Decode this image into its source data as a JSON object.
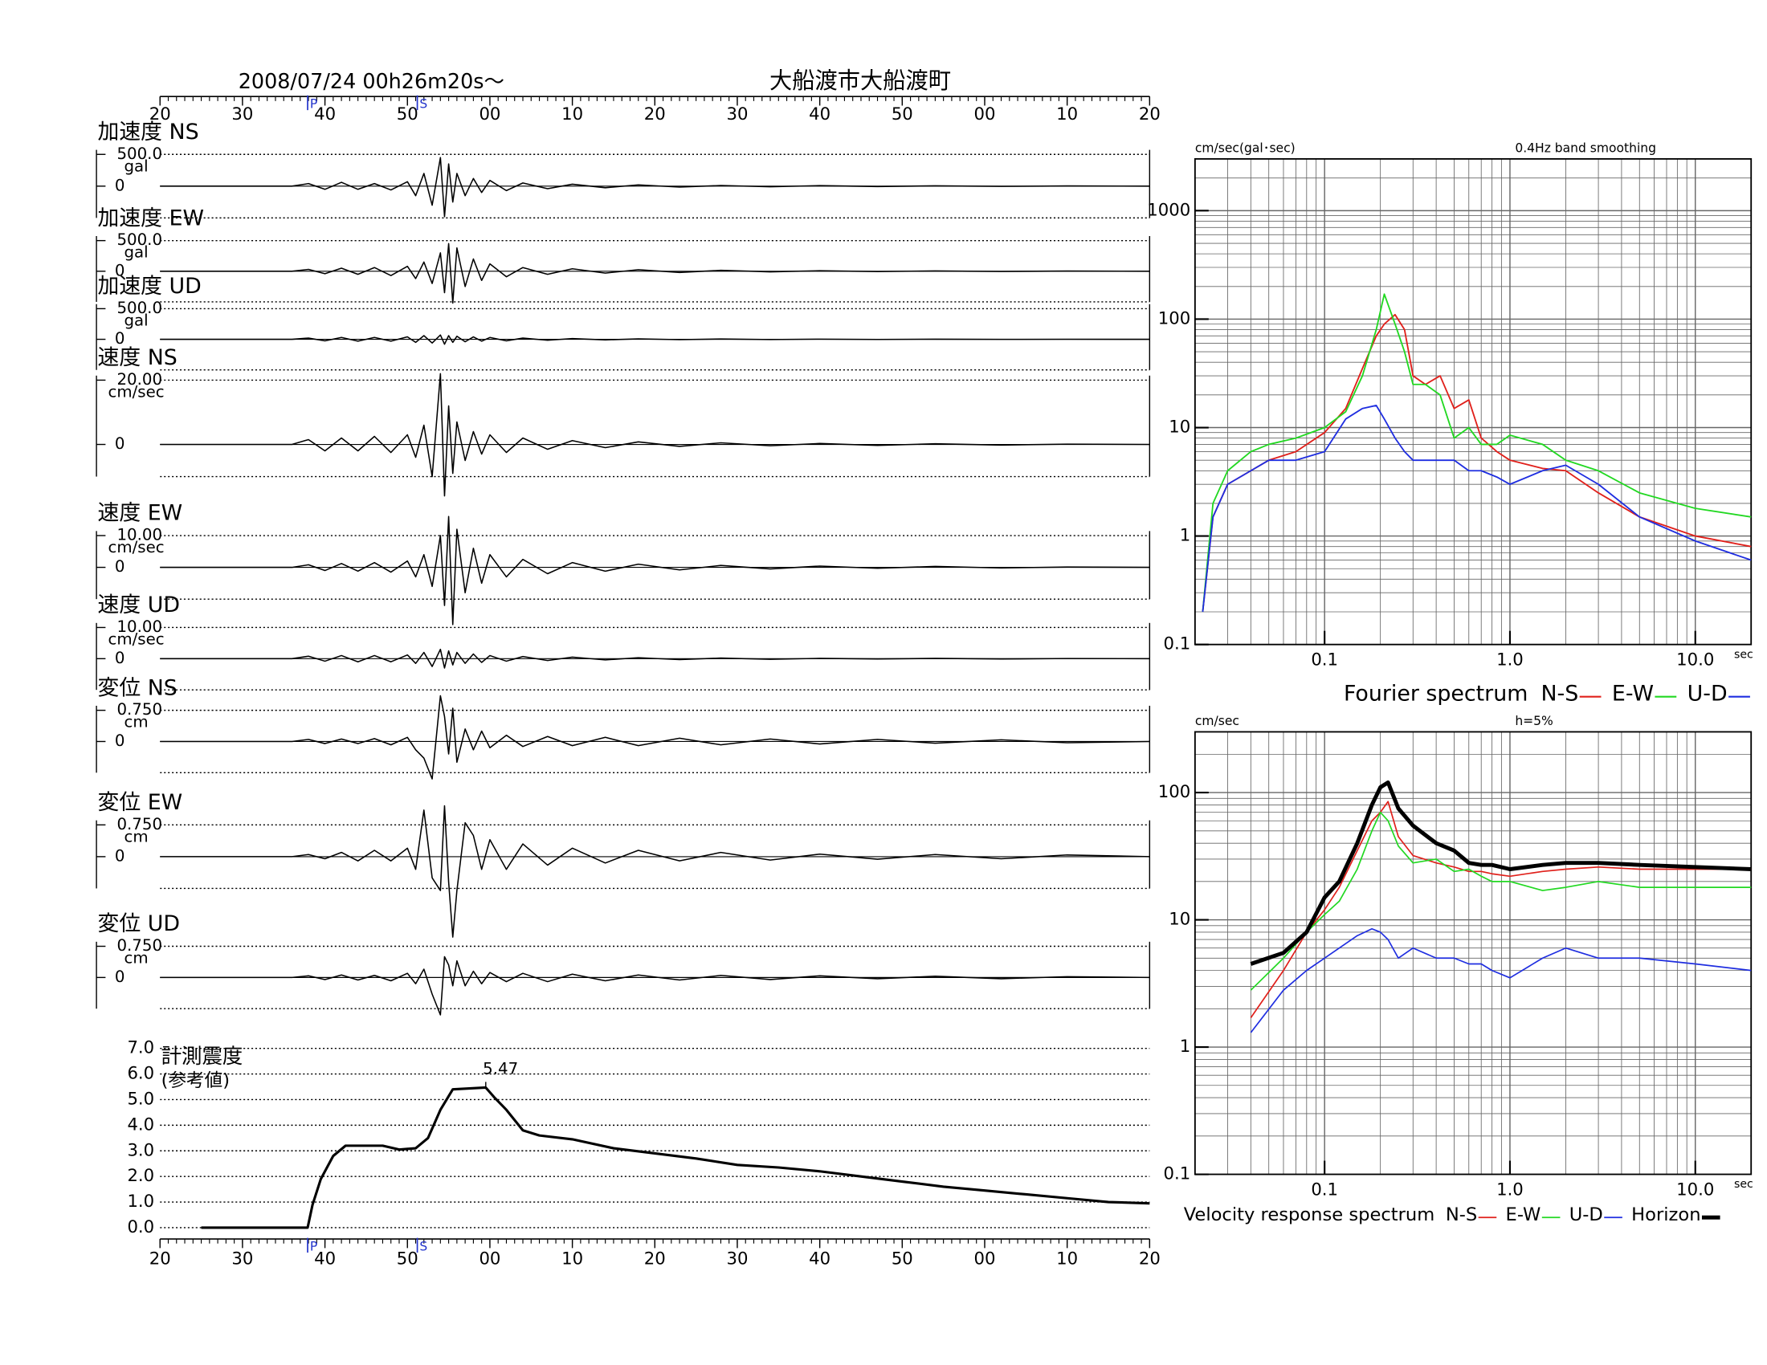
{
  "chart_data": [
    {
      "type": "waveform",
      "title": "2008/07/24  00h26m20s～",
      "subtitle": "大船渡市大船渡町",
      "xlim": [
        0,
        120
      ],
      "xticks": [
        {
          "value": 0,
          "label": "20"
        },
        {
          "value": 10,
          "label": "30"
        },
        {
          "value": 20,
          "label": "40"
        },
        {
          "value": 30,
          "label": "50"
        },
        {
          "value": 40,
          "label": "00"
        },
        {
          "value": 50,
          "label": "10"
        },
        {
          "value": 60,
          "label": "20"
        },
        {
          "value": 70,
          "label": "30"
        },
        {
          "value": 80,
          "label": "40"
        },
        {
          "value": 90,
          "label": "50"
        },
        {
          "value": 100,
          "label": "00"
        },
        {
          "value": 110,
          "label": "10"
        },
        {
          "value": 120,
          "label": "20"
        }
      ],
      "phase_markers": [
        {
          "value": 17.9,
          "label": "P"
        },
        {
          "value": 31.2,
          "label": "S"
        }
      ],
      "x": [
        0,
        16,
        18,
        20,
        22,
        24,
        26,
        28,
        30,
        31,
        32,
        33,
        34,
        34.5,
        35,
        35.5,
        36,
        37,
        38,
        39,
        40,
        42,
        44,
        47,
        50,
        54,
        58,
        63,
        68,
        74,
        80,
        87,
        94,
        102,
        110,
        120
      ],
      "series": [
        {
          "name": "加速度 NS",
          "unit": "gal",
          "color": "#000000",
          "ylim": [
            -500,
            500
          ],
          "yticks": [
            {
              "value": 500,
              "label": "500.0"
            },
            0
          ],
          "values": [
            0,
            0,
            40,
            -50,
            60,
            -50,
            40,
            -60,
            70,
            -150,
            200,
            -300,
            450,
            -480,
            350,
            -250,
            200,
            -150,
            120,
            -100,
            90,
            -70,
            50,
            -40,
            30,
            -25,
            20,
            -15,
            10,
            -10,
            8,
            -6,
            5,
            -4,
            3,
            0
          ]
        },
        {
          "name": "加速度 EW",
          "unit": "gal",
          "color": "#000000",
          "ylim": [
            -500,
            500
          ],
          "yticks": [
            {
              "value": 500,
              "label": "500.0"
            },
            0
          ],
          "values": [
            0,
            0,
            30,
            -40,
            50,
            -50,
            60,
            -70,
            80,
            -120,
            150,
            -200,
            300,
            -350,
            450,
            -520,
            380,
            -250,
            200,
            -150,
            120,
            -90,
            60,
            -50,
            40,
            -30,
            25,
            -20,
            15,
            -10,
            8,
            -6,
            5,
            -4,
            3,
            0
          ]
        },
        {
          "name": "加速度 UD",
          "unit": "gal",
          "color": "#000000",
          "ylim": [
            -500,
            500
          ],
          "yticks": [
            {
              "value": 500,
              "label": "500.0"
            },
            0
          ],
          "values": [
            0,
            0,
            20,
            -25,
            30,
            -30,
            30,
            -30,
            40,
            -50,
            60,
            -60,
            70,
            -80,
            60,
            -50,
            50,
            -40,
            40,
            -30,
            30,
            -25,
            20,
            -15,
            12,
            -10,
            8,
            -6,
            5,
            -4,
            3,
            -2,
            2,
            -1,
            1,
            0
          ]
        },
        {
          "name": "速度 NS",
          "unit": "cm/sec",
          "color": "#000000",
          "ylim": [
            -10,
            20
          ],
          "yticks": [
            {
              "value": 20,
              "label": "20.00"
            },
            0
          ],
          "values": [
            0,
            0,
            1.5,
            -2,
            2,
            -2,
            2.5,
            -2.5,
            3,
            -4,
            6,
            -10,
            22,
            -16,
            12,
            -9,
            7,
            -5,
            4,
            -3,
            3,
            -2.5,
            2,
            -1.5,
            1.2,
            -1,
            0.8,
            -0.6,
            0.5,
            -0.4,
            0.3,
            -0.3,
            0.2,
            -0.2,
            0.1,
            0
          ]
        },
        {
          "name": "速度 EW",
          "unit": "cm/sec",
          "color": "#000000",
          "ylim": [
            -10,
            10
          ],
          "yticks": [
            {
              "value": 10,
              "label": "10.00"
            },
            0
          ],
          "values": [
            0,
            0,
            0.8,
            -1,
            1.2,
            -1.2,
            1.5,
            -1.5,
            2,
            -3,
            4,
            -6,
            10,
            -12,
            16,
            -18,
            12,
            -8,
            6,
            -5,
            4,
            -3,
            2.5,
            -2,
            1.5,
            -1.2,
            1,
            -0.8,
            0.6,
            -0.5,
            0.4,
            -0.3,
            0.3,
            -0.2,
            0.1,
            0
          ]
        },
        {
          "name": "速度 UD",
          "unit": "cm/sec",
          "color": "#000000",
          "ylim": [
            -10,
            10
          ],
          "yticks": [
            {
              "value": 10,
              "label": "10.00"
            },
            0
          ],
          "values": [
            0,
            0,
            0.8,
            -0.8,
            1,
            -1,
            1,
            -1,
            1.2,
            -1.5,
            2,
            -2.5,
            3,
            -3,
            2.5,
            -2,
            2,
            -1.5,
            1.5,
            -1.2,
            1,
            -0.8,
            0.7,
            -0.6,
            0.5,
            -0.4,
            0.3,
            -0.3,
            0.2,
            -0.2,
            0.1,
            -0.1,
            0.1,
            -0.1,
            0.05,
            0
          ]
        },
        {
          "name": "変位 NS",
          "unit": "cm",
          "color": "#000000",
          "ylim": [
            -0.75,
            0.75
          ],
          "yticks": [
            {
              "value": 0.75,
              "label": "0.750"
            },
            0
          ],
          "values": [
            0,
            0,
            0.05,
            -0.05,
            0.06,
            -0.05,
            0.07,
            -0.08,
            0.1,
            -0.2,
            -0.4,
            -0.9,
            1.1,
            0.6,
            -0.3,
            0.8,
            -0.5,
            0.3,
            -0.2,
            0.25,
            -0.15,
            0.15,
            -0.12,
            0.12,
            -0.1,
            0.1,
            -0.1,
            0.08,
            -0.08,
            0.06,
            -0.06,
            0.05,
            -0.04,
            0.04,
            -0.03,
            0
          ]
        },
        {
          "name": "変位 EW",
          "unit": "cm",
          "color": "#000000",
          "ylim": [
            -0.75,
            0.75
          ],
          "yticks": [
            {
              "value": 0.75,
              "label": "0.750"
            },
            0
          ],
          "values": [
            0,
            0,
            0.05,
            -0.05,
            0.1,
            -0.1,
            0.15,
            -0.1,
            0.2,
            -0.3,
            1.1,
            -0.5,
            -0.8,
            1.2,
            -0.6,
            -1.9,
            -0.8,
            0.8,
            0.5,
            -0.3,
            0.4,
            -0.3,
            0.3,
            -0.2,
            0.2,
            -0.15,
            0.15,
            -0.1,
            0.1,
            -0.08,
            0.06,
            -0.06,
            0.05,
            -0.05,
            0.04,
            0
          ]
        },
        {
          "name": "変位 UD",
          "unit": "cm",
          "color": "#000000",
          "ylim": [
            -0.75,
            0.75
          ],
          "yticks": [
            {
              "value": 0.75,
              "label": "0.750"
            },
            0
          ],
          "values": [
            0,
            0,
            0.04,
            -0.05,
            0.06,
            -0.06,
            0.05,
            -0.08,
            0.1,
            -0.15,
            0.2,
            -0.4,
            -0.9,
            0.5,
            0.3,
            -0.2,
            0.4,
            -0.2,
            0.15,
            -0.15,
            0.12,
            -0.1,
            0.1,
            -0.1,
            0.08,
            -0.08,
            0.06,
            -0.06,
            0.05,
            -0.05,
            0.04,
            -0.03,
            0.03,
            -0.03,
            0.02,
            0
          ]
        }
      ]
    },
    {
      "type": "intensity",
      "title": "計測震度",
      "subtitle": "(参考値)",
      "color": "#000000",
      "xlim": [
        0,
        120
      ],
      "xticks": [
        {
          "value": 0,
          "label": "20"
        },
        {
          "value": 10,
          "label": "30"
        },
        {
          "value": 20,
          "label": "40"
        },
        {
          "value": 30,
          "label": "50"
        },
        {
          "value": 40,
          "label": "00"
        },
        {
          "value": 50,
          "label": "10"
        },
        {
          "value": 60,
          "label": "20"
        },
        {
          "value": 70,
          "label": "30"
        },
        {
          "value": 80,
          "label": "40"
        },
        {
          "value": 90,
          "label": "50"
        },
        {
          "value": 100,
          "label": "00"
        },
        {
          "value": 110,
          "label": "10"
        },
        {
          "value": 120,
          "label": "20"
        }
      ],
      "phase_markers": [
        {
          "value": 17.9,
          "label": "P"
        },
        {
          "value": 31.2,
          "label": "S"
        }
      ],
      "ylim": [
        0,
        7
      ],
      "yticks": [
        {
          "value": 0,
          "label": "0.0"
        },
        {
          "value": 1,
          "label": "1.0"
        },
        {
          "value": 2,
          "label": "2.0"
        },
        {
          "value": 3,
          "label": "3.0"
        },
        {
          "value": 4,
          "label": "4.0"
        },
        {
          "value": 5,
          "label": "5.0"
        },
        {
          "value": 6,
          "label": "6.0"
        },
        {
          "value": 7,
          "label": "7.0"
        }
      ],
      "grid": true,
      "peak": {
        "x": 39.5,
        "y": 5.47
      },
      "x": [
        5,
        17.9,
        18.5,
        19.5,
        21,
        22.5,
        27,
        29,
        31,
        32.5,
        34,
        35.5,
        39.5,
        40.5,
        42,
        44,
        46,
        50,
        55,
        60,
        65,
        70,
        75,
        80,
        85,
        90,
        95,
        100,
        105,
        110,
        115,
        120
      ],
      "values": [
        0,
        0,
        0.9,
        1.9,
        2.8,
        3.2,
        3.2,
        3.05,
        3.1,
        3.5,
        4.6,
        5.4,
        5.47,
        5.1,
        4.6,
        3.8,
        3.6,
        3.45,
        3.1,
        2.9,
        2.7,
        2.45,
        2.35,
        2.2,
        2.0,
        1.8,
        1.6,
        1.45,
        1.3,
        1.15,
        1.0,
        0.95
      ]
    },
    {
      "type": "spectrum",
      "title": "Fourier spectrum",
      "ylabel": "cm/sec(gal･sec)",
      "note": "0.4Hz band smoothing",
      "xlabel": "sec",
      "xscale": "log",
      "yscale": "log",
      "grid": true,
      "xlim": [
        0.02,
        20
      ],
      "ylim": [
        0.1,
        3000
      ],
      "xticks": [
        0.1,
        {
          "value": 1,
          "label": "1.0"
        },
        {
          "value": 10,
          "label": "10.0"
        }
      ],
      "yticks": [
        0.1,
        1,
        10,
        100,
        1000
      ],
      "x": [
        0.022,
        0.025,
        0.03,
        0.04,
        0.05,
        0.07,
        0.1,
        0.13,
        0.16,
        0.19,
        0.21,
        0.24,
        0.27,
        0.3,
        0.35,
        0.42,
        0.5,
        0.6,
        0.7,
        0.85,
        1.0,
        1.5,
        2.0,
        3,
        5,
        10,
        20
      ],
      "series": [
        {
          "name": "N-S",
          "color": "#e0201b",
          "values": [
            0.2,
            1.5,
            3,
            4,
            5,
            6,
            9,
            15,
            35,
            70,
            90,
            110,
            80,
            30,
            25,
            30,
            15,
            18,
            8,
            6,
            5,
            4.2,
            4,
            2.5,
            1.5,
            1,
            0.8
          ]
        },
        {
          "name": "E-W",
          "color": "#22d822",
          "values": [
            0.2,
            2,
            4,
            6,
            7,
            8,
            10,
            14,
            30,
            80,
            170,
            90,
            50,
            25,
            25,
            20,
            8,
            10,
            7,
            7,
            8.5,
            7,
            5,
            4,
            2.5,
            1.8,
            1.5
          ]
        },
        {
          "name": "U-D",
          "color": "#1f2ee0",
          "values": [
            0.2,
            1.5,
            3,
            4,
            5,
            5,
            6,
            12,
            15,
            16,
            12,
            8,
            6,
            5,
            5,
            5,
            5,
            4,
            4,
            3.5,
            3,
            4,
            4.5,
            3,
            1.5,
            0.9,
            0.6
          ]
        }
      ]
    },
    {
      "type": "spectrum",
      "title": "Velocity response spectrum",
      "ylabel": "cm/sec",
      "note": "h=5%",
      "xlabel": "sec",
      "xscale": "log",
      "yscale": "log",
      "grid": true,
      "xlim": [
        0.02,
        20
      ],
      "ylim": [
        0.1,
        300
      ],
      "xticks": [
        0.1,
        {
          "value": 1,
          "label": "1.0"
        },
        {
          "value": 10,
          "label": "10.0"
        }
      ],
      "yticks": [
        0.1,
        1,
        10,
        100
      ],
      "x": [
        0.04,
        0.06,
        0.08,
        0.1,
        0.12,
        0.15,
        0.18,
        0.2,
        0.22,
        0.25,
        0.3,
        0.4,
        0.5,
        0.6,
        0.7,
        0.8,
        1.0,
        1.5,
        2,
        3,
        5,
        10,
        20
      ],
      "series": [
        {
          "name": "N-S",
          "color": "#e0201b",
          "width": 1.2,
          "values": [
            1.7,
            4,
            8,
            12,
            18,
            35,
            60,
            70,
            85,
            45,
            32,
            28,
            26,
            24,
            24,
            23,
            22,
            24,
            25,
            26,
            25,
            25,
            25
          ]
        },
        {
          "name": "E-W",
          "color": "#22d822",
          "width": 1.2,
          "values": [
            2.8,
            5,
            8,
            11,
            14,
            25,
            50,
            70,
            60,
            38,
            28,
            30,
            24,
            25,
            22,
            20,
            20,
            17,
            18,
            20,
            18,
            18,
            18
          ]
        },
        {
          "name": "U-D",
          "color": "#1f2ee0",
          "width": 1.2,
          "values": [
            1.3,
            2.8,
            4,
            5,
            6,
            7.5,
            8.5,
            8,
            7,
            5,
            6,
            5,
            5,
            4.5,
            4.5,
            4,
            3.5,
            5,
            6,
            5,
            5,
            4.5,
            4
          ]
        },
        {
          "name": "Horizon",
          "color": "#000000",
          "width": 3.5,
          "values": [
            4.5,
            5.5,
            8,
            15,
            20,
            40,
            80,
            110,
            120,
            75,
            55,
            40,
            35,
            28,
            27,
            27,
            25,
            27,
            28,
            28,
            27,
            26,
            25
          ]
        }
      ]
    }
  ]
}
